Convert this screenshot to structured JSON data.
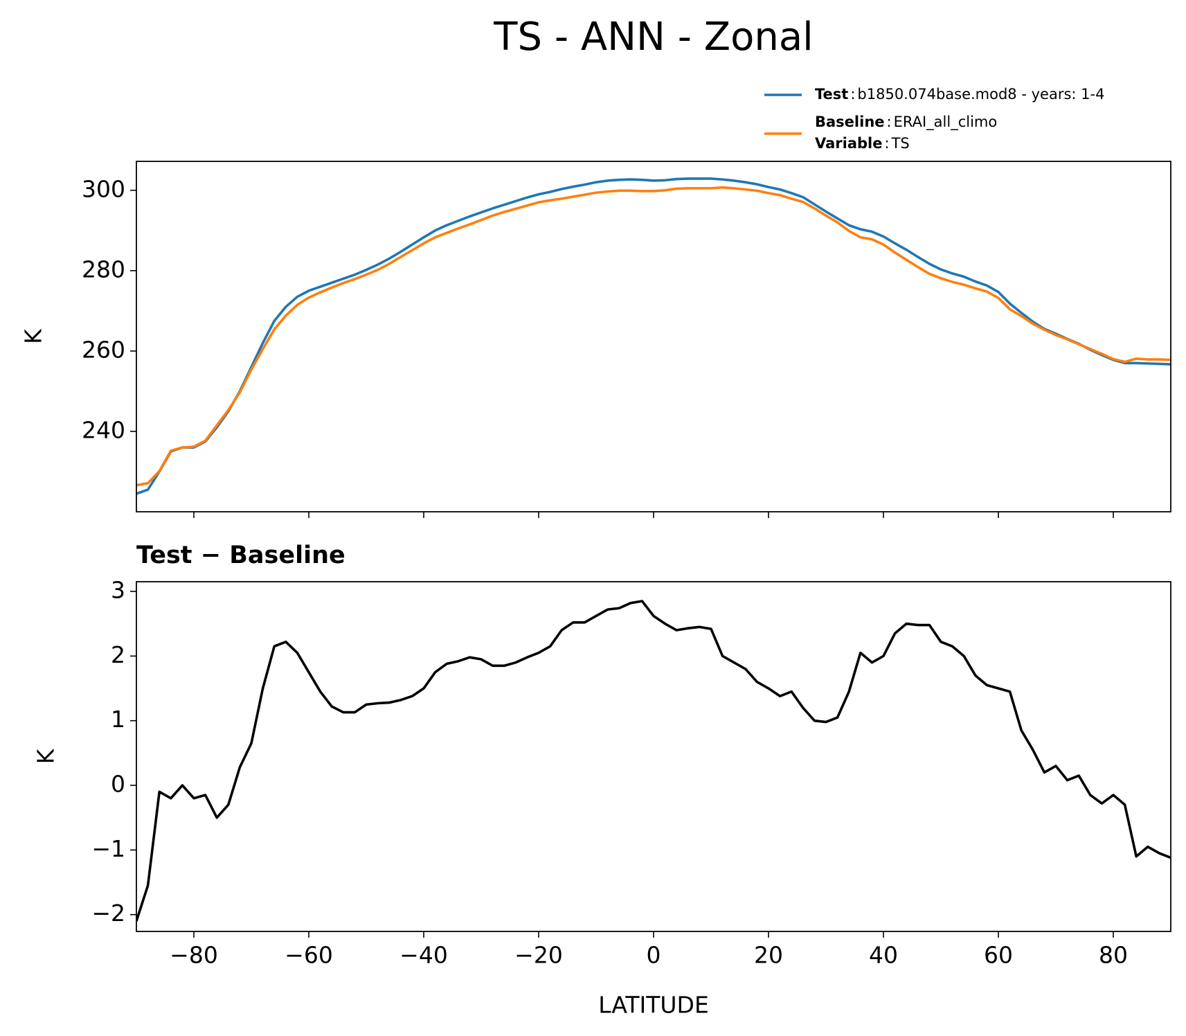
{
  "chart_data": [
    {
      "type": "line",
      "title": "TS - ANN - Zonal",
      "ylabel": "K",
      "x": [
        -90,
        -88,
        -86,
        -84,
        -82,
        -80,
        -78,
        -76,
        -74,
        -72,
        -70,
        -68,
        -66,
        -64,
        -62,
        -60,
        -58,
        -56,
        -54,
        -52,
        -50,
        -48,
        -46,
        -44,
        -42,
        -40,
        -38,
        -36,
        -34,
        -32,
        -30,
        -28,
        -26,
        -24,
        -22,
        -20,
        -18,
        -16,
        -14,
        -12,
        -10,
        -8,
        -6,
        -4,
        -2,
        0,
        2,
        4,
        6,
        8,
        10,
        12,
        14,
        16,
        18,
        20,
        22,
        24,
        26,
        28,
        30,
        32,
        34,
        36,
        38,
        40,
        42,
        44,
        46,
        48,
        50,
        52,
        54,
        56,
        58,
        60,
        62,
        64,
        66,
        68,
        70,
        72,
        74,
        76,
        78,
        80,
        82,
        84,
        86,
        88,
        90
      ],
      "xlim": [
        -90,
        90
      ],
      "ylim": [
        220,
        307.2
      ],
      "yticks": [
        240,
        260,
        280,
        300
      ],
      "legend_separator": ":",
      "series": [
        {
          "name": "Test",
          "label": "b1850.074base.mod8 - years: 1-4",
          "color": "#1f77b4",
          "values": [
            224.5,
            225.5,
            230,
            235,
            236,
            236,
            237.5,
            241,
            245,
            250,
            256,
            262,
            267.5,
            271,
            273.5,
            275,
            276,
            277,
            278,
            279,
            280.2,
            281.5,
            283,
            284.7,
            286.5,
            288.3,
            290,
            291.3,
            292.4,
            293.5,
            294.5,
            295.5,
            296.4,
            297.3,
            298.2,
            299,
            299.6,
            300.3,
            300.9,
            301.4,
            302,
            302.4,
            302.6,
            302.7,
            302.6,
            302.4,
            302.5,
            302.8,
            302.9,
            302.9,
            302.9,
            302.7,
            302.4,
            302,
            301.5,
            300.8,
            300.2,
            299.3,
            298.3,
            296.5,
            294.7,
            293,
            291.3,
            290.3,
            289.7,
            288.5,
            286.8,
            285.2,
            283.4,
            281.7,
            280.3,
            279.3,
            278.5,
            277.3,
            276.3,
            274.7,
            271.8,
            269.5,
            267.3,
            265.5,
            264.3,
            263,
            261.8,
            260.3,
            259,
            257.8,
            257,
            257,
            256.9,
            256.8,
            256.7
          ]
        },
        {
          "name": "Baseline",
          "label": "ERAI_all_climo",
          "extra_name": "Variable",
          "extra_label": "TS",
          "color": "#ff7f0e",
          "values": [
            226.6,
            227.1,
            230.1,
            235.2,
            236,
            236.2,
            237.7,
            241.5,
            245.3,
            249.7,
            255.4,
            260.5,
            265.4,
            268.8,
            271.5,
            273.3,
            274.6,
            275.8,
            276.9,
            277.9,
            279,
            280.2,
            281.7,
            283.4,
            285.1,
            286.8,
            288.3,
            289.4,
            290.5,
            291.5,
            292.6,
            293.7,
            294.6,
            295.4,
            296.2,
            297,
            297.5,
            297.9,
            298.4,
            298.9,
            299.4,
            299.7,
            299.9,
            299.9,
            299.8,
            299.8,
            300,
            300.4,
            300.5,
            300.5,
            300.5,
            300.7,
            300.5,
            300.2,
            299.9,
            299.3,
            298.8,
            297.9,
            297.1,
            295.5,
            293.7,
            292,
            289.9,
            288.3,
            287.8,
            286.5,
            284.5,
            282.7,
            280.9,
            279.2,
            278.1,
            277.2,
            276.5,
            275.6,
            274.8,
            273.2,
            270.4,
            268.7,
            266.8,
            265.3,
            264,
            262.9,
            261.7,
            260.5,
            259.3,
            258,
            257.3,
            258.1,
            257.9,
            257.9,
            257.8
          ]
        }
      ]
    },
    {
      "type": "line",
      "title": "Test − Baseline",
      "ylabel": "K",
      "xlabel": "LATITUDE",
      "x": [
        -90,
        -88,
        -86,
        -84,
        -82,
        -80,
        -78,
        -76,
        -74,
        -72,
        -70,
        -68,
        -66,
        -64,
        -62,
        -60,
        -58,
        -56,
        -54,
        -52,
        -50,
        -48,
        -46,
        -44,
        -42,
        -40,
        -38,
        -36,
        -34,
        -32,
        -30,
        -28,
        -26,
        -24,
        -22,
        -20,
        -18,
        -16,
        -14,
        -12,
        -10,
        -8,
        -6,
        -4,
        -2,
        0,
        2,
        4,
        6,
        8,
        10,
        12,
        14,
        16,
        18,
        20,
        22,
        24,
        26,
        28,
        30,
        32,
        34,
        36,
        38,
        40,
        42,
        44,
        46,
        48,
        50,
        52,
        54,
        56,
        58,
        60,
        62,
        64,
        66,
        68,
        70,
        72,
        74,
        76,
        78,
        80,
        82,
        84,
        86,
        88,
        90
      ],
      "xlim": [
        -90,
        90
      ],
      "ylim": [
        -2.26,
        3.15
      ],
      "xticks": [
        {
          "value": -80,
          "label": "−80"
        },
        {
          "value": -60,
          "label": "−60"
        },
        {
          "value": -40,
          "label": "−40"
        },
        {
          "value": -20,
          "label": "−20"
        },
        0,
        20,
        40,
        60,
        80
      ],
      "yticks": [
        {
          "value": -2,
          "label": "−2"
        },
        {
          "value": -1,
          "label": "−1"
        },
        0,
        1,
        2,
        3
      ],
      "series": [
        {
          "color": "#000000",
          "values": [
            -2.1,
            -1.55,
            -0.1,
            -0.2,
            0.0,
            -0.2,
            -0.15,
            -0.5,
            -0.3,
            0.28,
            0.65,
            1.5,
            2.15,
            2.22,
            2.05,
            1.75,
            1.45,
            1.22,
            1.13,
            1.13,
            1.25,
            1.27,
            1.28,
            1.32,
            1.38,
            1.5,
            1.75,
            1.88,
            1.92,
            1.98,
            1.95,
            1.85,
            1.85,
            1.9,
            1.98,
            2.05,
            2.15,
            2.4,
            2.52,
            2.52,
            2.62,
            2.72,
            2.74,
            2.82,
            2.85,
            2.62,
            2.5,
            2.4,
            2.43,
            2.45,
            2.42,
            2.0,
            1.9,
            1.8,
            1.6,
            1.5,
            1.38,
            1.45,
            1.2,
            1.0,
            0.98,
            1.05,
            1.45,
            2.05,
            1.9,
            2.0,
            2.35,
            2.5,
            2.48,
            2.48,
            2.22,
            2.15,
            2.0,
            1.7,
            1.55,
            1.5,
            1.45,
            0.85,
            0.55,
            0.2,
            0.3,
            0.08,
            0.15,
            -0.15,
            -0.28,
            -0.15,
            -0.3,
            -1.1,
            -0.95,
            -1.05,
            -1.12
          ]
        }
      ]
    }
  ]
}
